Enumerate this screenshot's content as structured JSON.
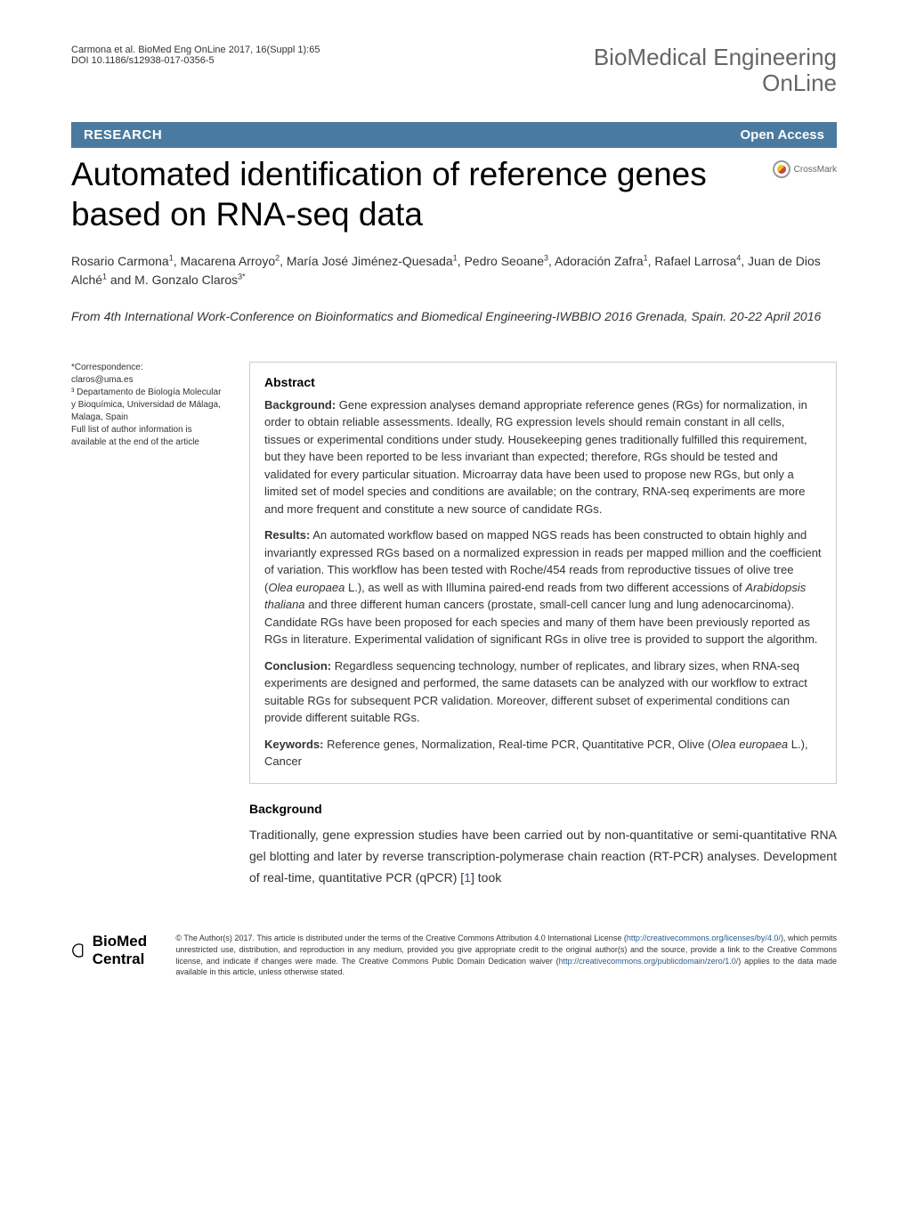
{
  "header": {
    "citation": "Carmona et al. BioMed Eng OnLine 2017, 16(Suppl 1):65",
    "doi": "DOI 10.1186/s12938-017-0356-5",
    "journal_line1": "BioMedical Engineering",
    "journal_line2": "OnLine"
  },
  "research_bar": {
    "label": "RESEARCH",
    "open_access": "Open Access"
  },
  "title": "Automated identification of reference genes based on RNA-seq data",
  "crossmark": "CrossMark",
  "authors_html": "Rosario Carmona<span class='sup'>1</span>, Macarena Arroyo<span class='sup'>2</span>, María José Jiménez-Quesada<span class='sup'>1</span>, Pedro Seoane<span class='sup'>3</span>, Adoración Zafra<span class='sup'>1</span>, Rafael Larrosa<span class='sup'>4</span>, Juan de Dios Alché<span class='sup'>1</span> and M. Gonzalo Claros<span class='sup'>3*</span>",
  "conference": {
    "from": "From",
    "text": "4th International Work-Conference on Bioinformatics and Biomedical Engineering-IWBBIO 2016 Grenada, Spain. 20-22 April 2016"
  },
  "sidebar": {
    "correspondence": "*Correspondence:",
    "email": "claros@uma.es",
    "affiliation": "³ Departamento de Biología Molecular y Bioquímica, Universidad de Málaga, Malaga, Spain",
    "fulllist": "Full list of author information is available at the end of the article"
  },
  "abstract": {
    "heading": "Abstract",
    "background_label": "Background:",
    "background_text": " Gene expression analyses demand appropriate reference genes (RGs) for normalization, in order to obtain reliable assessments. Ideally, RG expression levels should remain constant in all cells, tissues or experimental conditions under study. Housekeeping genes traditionally fulfilled this requirement, but they have been reported to be less invariant than expected; therefore, RGs should be tested and validated for every particular situation. Microarray data have been used to propose new RGs, but only a limited set of model species and conditions are available; on the contrary, RNA-seq experiments are more and more frequent and constitute a new source of candidate RGs.",
    "results_label": "Results:",
    "results_text_html": " An automated workflow based on mapped NGS reads has been constructed to obtain highly and invariantly expressed RGs based on a normalized expression in reads per mapped million and the coefficient of variation. This workflow has been tested with Roche/454 reads from reproductive tissues of olive tree (<span class='italic'>Olea europaea</span> L.), as well as with Illumina paired-end reads from two different accessions of <span class='italic'>Arabidopsis thaliana</span> and three different human cancers (prostate, small-cell cancer lung and lung adenocarcinoma). Candidate RGs have been proposed for each species and many of them have been previously reported as RGs in literature. Experimental validation of significant RGs in olive tree is provided to support the algorithm.",
    "conclusion_label": "Conclusion:",
    "conclusion_text": " Regardless sequencing technology, number of replicates, and library sizes, when RNA-seq experiments are designed and performed, the same datasets can be analyzed with our workflow to extract suitable RGs for subsequent PCR validation. Moreover, different subset of experimental conditions can provide different suitable RGs.",
    "keywords_label": "Keywords:",
    "keywords_text_html": " Reference genes, Normalization, Real-time PCR, Quantitative PCR, Olive (<span class='italic'>Olea europaea</span> L.), Cancer"
  },
  "background": {
    "heading": "Background",
    "text_html": "Traditionally, gene expression studies have been carried out by non-quantitative or semi-quantitative RNA gel blotting and later by reverse transcription-polymerase chain reaction (RT-PCR) analyses. Development of real-time, quantitative PCR (qPCR) [<span class='ref-link'>1</span>] took"
  },
  "footer": {
    "logo_bold": "BioMed",
    "logo_rest": " Central",
    "copyright_html": "© The Author(s) 2017. This article is distributed under the terms of the Creative Commons Attribution 4.0 International License (<a href='#'>http://creativecommons.org/licenses/by/4.0/</a>), which permits unrestricted use, distribution, and reproduction in any medium, provided you give appropriate credit to the original author(s) and the source, provide a link to the Creative Commons license, and indicate if changes were made. The Creative Commons Public Domain Dedication waiver (<a href='#'>http://creativecommons.org/publicdomain/zero/1.0/</a>) applies to the data made available in this article, unless otherwise stated."
  }
}
